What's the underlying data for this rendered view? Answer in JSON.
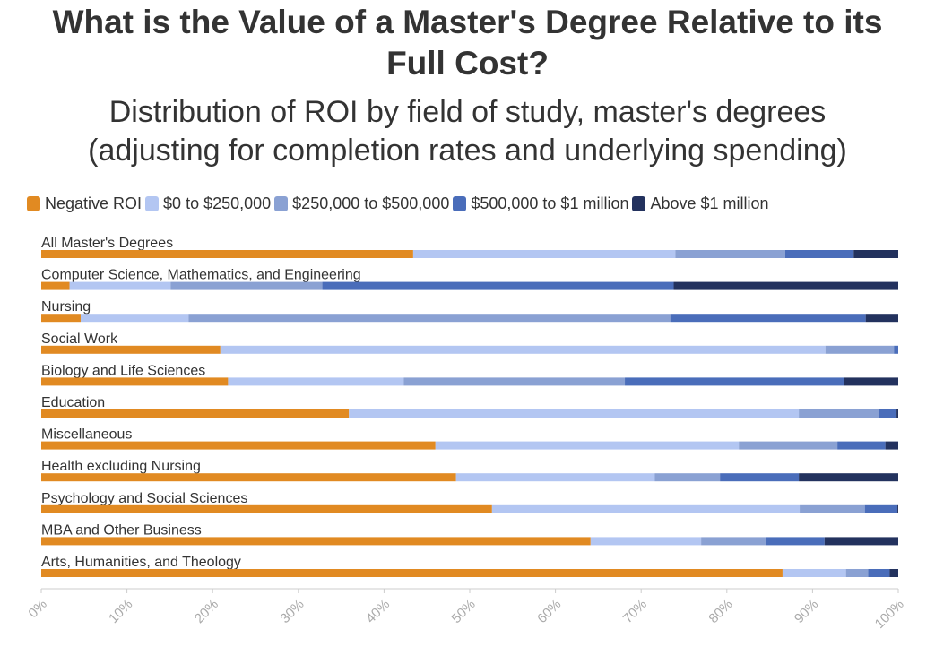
{
  "header": {
    "title_line1": "What is the Value of a Master's Degree Relative to its",
    "title_line2": "Full Cost?",
    "subtitle_line1": "Distribution of ROI by field of study, master's degrees",
    "subtitle_line2": "(adjusting for completion rates and underlying spending)"
  },
  "legend": [
    {
      "label": "Negative ROI",
      "color": "#E18A22"
    },
    {
      "label": "$0 to $250,000",
      "color": "#B3C6F2"
    },
    {
      "label": "$250,000 to $500,000",
      "color": "#8AA1D3"
    },
    {
      "label": "$500,000 to $1 million",
      "color": "#4A6DBA"
    },
    {
      "label": "Above $1 million",
      "color": "#23325E"
    }
  ],
  "chart_data": {
    "type": "bar",
    "orientation": "horizontal",
    "stacked": true,
    "categories": [
      "All Master's Degrees",
      "Computer Science, Mathematics, and Engineering",
      "Nursing",
      "Social Work",
      "Biology and Life Sciences",
      "Education",
      "Miscellaneous",
      "Health excluding Nursing",
      "Psychology and Social Sciences",
      "MBA and Other Business",
      "Arts, Humanities, and Theology"
    ],
    "series": [
      {
        "name": "Negative ROI",
        "color": "#E18A22",
        "values": [
          43.4,
          3.3,
          4.6,
          20.9,
          21.8,
          35.9,
          46.0,
          48.4,
          52.6,
          64.1,
          86.5
        ]
      },
      {
        "name": "$0 to $250,000",
        "color": "#B3C6F2",
        "values": [
          30.6,
          11.8,
          12.6,
          70.6,
          20.5,
          52.5,
          35.4,
          23.2,
          35.9,
          12.9,
          7.4
        ]
      },
      {
        "name": "$250,000 to $500,000",
        "color": "#8AA1D3",
        "values": [
          12.8,
          17.7,
          56.2,
          8.0,
          25.8,
          9.4,
          11.5,
          7.6,
          7.6,
          7.5,
          2.6
        ]
      },
      {
        "name": "$500,000 to $1 million",
        "color": "#4A6DBA",
        "values": [
          8.0,
          41.0,
          22.8,
          0.5,
          25.6,
          2.0,
          5.6,
          9.2,
          3.8,
          6.9,
          2.5
        ]
      },
      {
        "name": "Above $1 million",
        "color": "#23325E",
        "values": [
          5.2,
          26.2,
          3.8,
          0.0,
          6.3,
          0.2,
          1.5,
          11.6,
          0.1,
          8.6,
          1.0
        ]
      }
    ],
    "xlim": [
      0,
      100
    ],
    "xticks": [
      "0%",
      "10%",
      "20%",
      "30%",
      "40%",
      "50%",
      "60%",
      "70%",
      "80%",
      "90%",
      "100%"
    ],
    "grid": false,
    "legend_position": "top-left"
  }
}
